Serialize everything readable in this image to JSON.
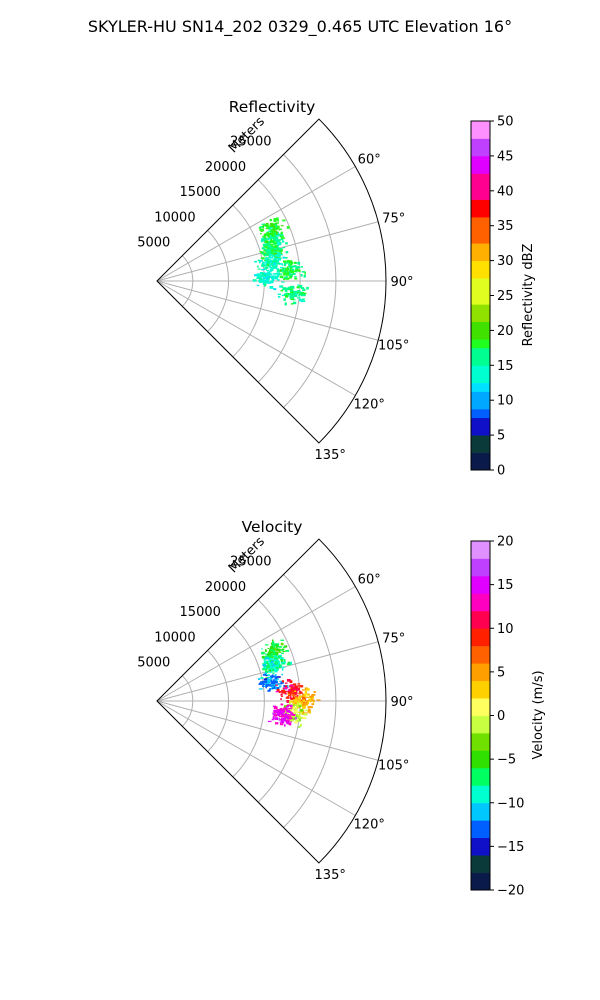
{
  "suptitle": "SKYLER-HU  SN14_202  0329_0.465 UTC Elevation 16°",
  "chart_data": [
    {
      "type": "polar-sector",
      "title": "Reflectivity",
      "radial_axis_label": "Meters",
      "radial_ticks": [
        5000,
        10000,
        15000,
        20000,
        25000
      ],
      "radial_tick_labels": [
        "5000",
        "10000",
        "15000",
        "20000",
        "25000"
      ],
      "rlim": [
        0,
        32000
      ],
      "theta_ticks_deg": [
        60,
        75,
        90,
        105,
        120,
        135
      ],
      "theta_tick_labels": [
        "60°",
        "75°",
        "90°",
        "105°",
        "120°",
        "135°"
      ],
      "theta_range_deg": [
        45,
        135
      ],
      "grid": true,
      "colorbar": {
        "label": "Reflectivity dBZ",
        "range": [
          0,
          50
        ],
        "ticks": [
          "0",
          "5",
          "10",
          "15",
          "20",
          "25",
          "30",
          "35",
          "40",
          "45",
          "50"
        ]
      },
      "echo_clusters": [
        {
          "azimuth_deg": 70,
          "range_m": 17000,
          "value": 16
        },
        {
          "azimuth_deg": 75,
          "range_m": 16500,
          "value": 17
        },
        {
          "azimuth_deg": 80,
          "range_m": 16000,
          "value": 15
        },
        {
          "azimuth_deg": 85,
          "range_m": 18500,
          "value": 17
        },
        {
          "azimuth_deg": 88,
          "range_m": 15000,
          "value": 14
        },
        {
          "azimuth_deg": 95,
          "range_m": 19000,
          "value": 16
        },
        {
          "azimuth_deg": 65,
          "range_m": 17500,
          "value": 18
        }
      ]
    },
    {
      "type": "polar-sector",
      "title": "Velocity",
      "radial_axis_label": "Meters",
      "radial_ticks": [
        5000,
        10000,
        15000,
        20000,
        25000
      ],
      "radial_tick_labels": [
        "5000",
        "10000",
        "15000",
        "20000",
        "25000"
      ],
      "rlim": [
        0,
        32000
      ],
      "theta_ticks_deg": [
        60,
        75,
        90,
        105,
        120,
        135
      ],
      "theta_tick_labels": [
        "60°",
        "75°",
        "90°",
        "105°",
        "120°",
        "135°"
      ],
      "theta_range_deg": [
        45,
        135
      ],
      "grid": true,
      "colorbar": {
        "label": "Velocity (m/s)",
        "range": [
          -20,
          20
        ],
        "ticks": [
          "−20",
          "−15",
          "−10",
          "−5",
          "0",
          "5",
          "10",
          "15",
          "20"
        ]
      },
      "echo_clusters": [
        {
          "azimuth_deg": 66,
          "range_m": 17500,
          "value": -6
        },
        {
          "azimuth_deg": 72,
          "range_m": 17000,
          "value": -8
        },
        {
          "azimuth_deg": 80,
          "range_m": 16000,
          "value": -12
        },
        {
          "azimuth_deg": 85,
          "range_m": 18500,
          "value": 10
        },
        {
          "azimuth_deg": 90,
          "range_m": 20500,
          "value": 4
        },
        {
          "azimuth_deg": 95,
          "range_m": 19000,
          "value": -1
        },
        {
          "azimuth_deg": 96,
          "range_m": 17500,
          "value": 14
        }
      ]
    }
  ]
}
